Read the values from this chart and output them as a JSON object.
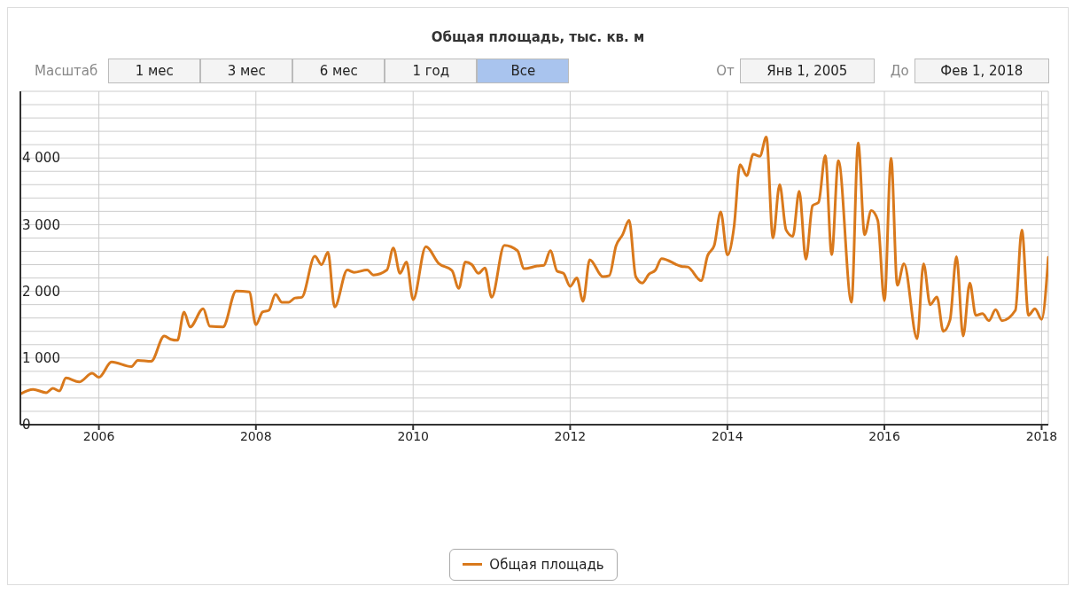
{
  "chart_data": {
    "type": "line",
    "title": "Общая площадь, тыс. кв. м",
    "annotations": [
      "Масштаб",
      "1 мес",
      "3 мес",
      "6 мес",
      "1 год",
      "Все",
      "От",
      "Янв 1, 2005",
      "До",
      "Фев 1, 2018"
    ],
    "x": [
      "2005-01",
      "2005-03",
      "2005-05",
      "2005-06",
      "2005-07",
      "2005-08",
      "2005-10",
      "2005-12",
      "2006-01",
      "2006-03",
      "2006-06",
      "2006-07",
      "2006-09",
      "2006-11",
      "2006-12",
      "2007-01",
      "2007-02",
      "2007-03",
      "2007-05",
      "2007-06",
      "2007-08",
      "2007-10",
      "2007-12",
      "2008-01",
      "2008-02",
      "2008-03",
      "2008-04",
      "2008-05",
      "2008-06",
      "2008-07",
      "2008-08",
      "2008-10",
      "2008-11",
      "2008-12",
      "2009-01",
      "2009-03",
      "2009-04",
      "2009-06",
      "2009-07",
      "2009-09",
      "2009-10",
      "2009-11",
      "2009-12",
      "2010-01",
      "2010-03",
      "2010-05",
      "2010-07",
      "2010-08",
      "2010-09",
      "2010-10",
      "2010-11",
      "2010-12",
      "2011-01",
      "2011-03",
      "2011-05",
      "2011-06",
      "2011-08",
      "2011-09",
      "2011-10",
      "2011-11",
      "2011-12",
      "2012-01",
      "2012-02",
      "2012-03",
      "2012-04",
      "2012-06",
      "2012-07",
      "2012-08",
      "2012-09",
      "2012-10",
      "2012-11",
      "2012-12",
      "2013-01",
      "2013-02",
      "2013-03",
      "2013-06",
      "2013-07",
      "2013-09",
      "2013-10",
      "2013-11",
      "2013-12",
      "2014-01",
      "2014-02",
      "2014-03",
      "2014-04",
      "2014-05",
      "2014-06",
      "2014-07",
      "2014-08",
      "2014-09",
      "2014-10",
      "2014-11",
      "2014-12",
      "2015-01",
      "2015-02",
      "2015-03",
      "2015-04",
      "2015-05",
      "2015-06",
      "2015-08",
      "2015-09",
      "2015-10",
      "2015-11",
      "2015-12",
      "2016-01",
      "2016-02",
      "2016-03",
      "2016-04",
      "2016-06",
      "2016-07",
      "2016-08",
      "2016-09",
      "2016-10",
      "2016-11",
      "2016-12",
      "2017-01",
      "2017-02",
      "2017-03",
      "2017-04",
      "2017-05",
      "2017-06",
      "2017-07",
      "2017-09",
      "2017-10",
      "2017-11",
      "2017-12",
      "2018-01",
      "2018-02"
    ],
    "series": [
      {
        "name": "Общая площадь",
        "color": "#d9791c",
        "values": [
          460,
          530,
          480,
          545,
          505,
          700,
          640,
          770,
          710,
          940,
          870,
          965,
          950,
          1330,
          1280,
          1265,
          1690,
          1465,
          1740,
          1475,
          1465,
          2005,
          1990,
          1500,
          1690,
          1715,
          1955,
          1835,
          1835,
          1900,
          1910,
          2525,
          2400,
          2585,
          1765,
          2320,
          2285,
          2320,
          2245,
          2320,
          2650,
          2270,
          2440,
          1875,
          2670,
          2415,
          2310,
          2045,
          2440,
          2400,
          2270,
          2350,
          1910,
          2690,
          2610,
          2340,
          2380,
          2390,
          2610,
          2305,
          2270,
          2075,
          2200,
          1850,
          2475,
          2220,
          2235,
          2680,
          2850,
          3065,
          2220,
          2125,
          2255,
          2320,
          2490,
          2375,
          2365,
          2160,
          2535,
          2690,
          3190,
          2545,
          2970,
          3900,
          3735,
          4055,
          4025,
          4315,
          2800,
          3600,
          2920,
          2825,
          3500,
          2480,
          3285,
          3335,
          4035,
          2550,
          3960,
          1835,
          4225,
          2850,
          3210,
          3065,
          1860,
          3995,
          2090,
          2415,
          1290,
          2415,
          1800,
          1915,
          1400,
          1570,
          2520,
          1330,
          2125,
          1640,
          1665,
          1560,
          1725,
          1560,
          1715,
          2920,
          1640,
          1740,
          1580,
          2510
        ]
      }
    ],
    "xlim": [
      "2005-01-01",
      "2018-02-01"
    ],
    "xticks": [
      "2006",
      "2008",
      "2010",
      "2012",
      "2014",
      "2016",
      "2018"
    ],
    "ylim": [
      0,
      5000
    ],
    "yticks": [
      0,
      {
        "value": 200,
        "label": null
      },
      {
        "value": 400,
        "label": null
      },
      {
        "value": 600,
        "label": null
      },
      {
        "value": 800,
        "label": null
      },
      {
        "value": 1000,
        "label": "1 000"
      },
      {
        "value": 1200,
        "label": null
      },
      {
        "value": 1400,
        "label": null
      },
      {
        "value": 1600,
        "label": null
      },
      {
        "value": 1800,
        "label": null
      },
      {
        "value": 2000,
        "label": "2 000"
      },
      {
        "value": 2200,
        "label": null
      },
      {
        "value": 2400,
        "label": null
      },
      {
        "value": 2600,
        "label": null
      },
      {
        "value": 2800,
        "label": null
      },
      {
        "value": 3000,
        "label": "3 000"
      },
      {
        "value": 3200,
        "label": null
      },
      {
        "value": 3400,
        "label": null
      },
      {
        "value": 3600,
        "label": null
      },
      {
        "value": 3800,
        "label": null
      },
      {
        "value": 4000,
        "label": "4 000"
      },
      {
        "value": 4200,
        "label": null
      },
      {
        "value": 4400,
        "label": null
      },
      {
        "value": 4600,
        "label": null
      },
      {
        "value": 4800,
        "label": null
      },
      {
        "value": 5000,
        "label": null
      }
    ],
    "grid": true,
    "legend": "bottom"
  }
}
